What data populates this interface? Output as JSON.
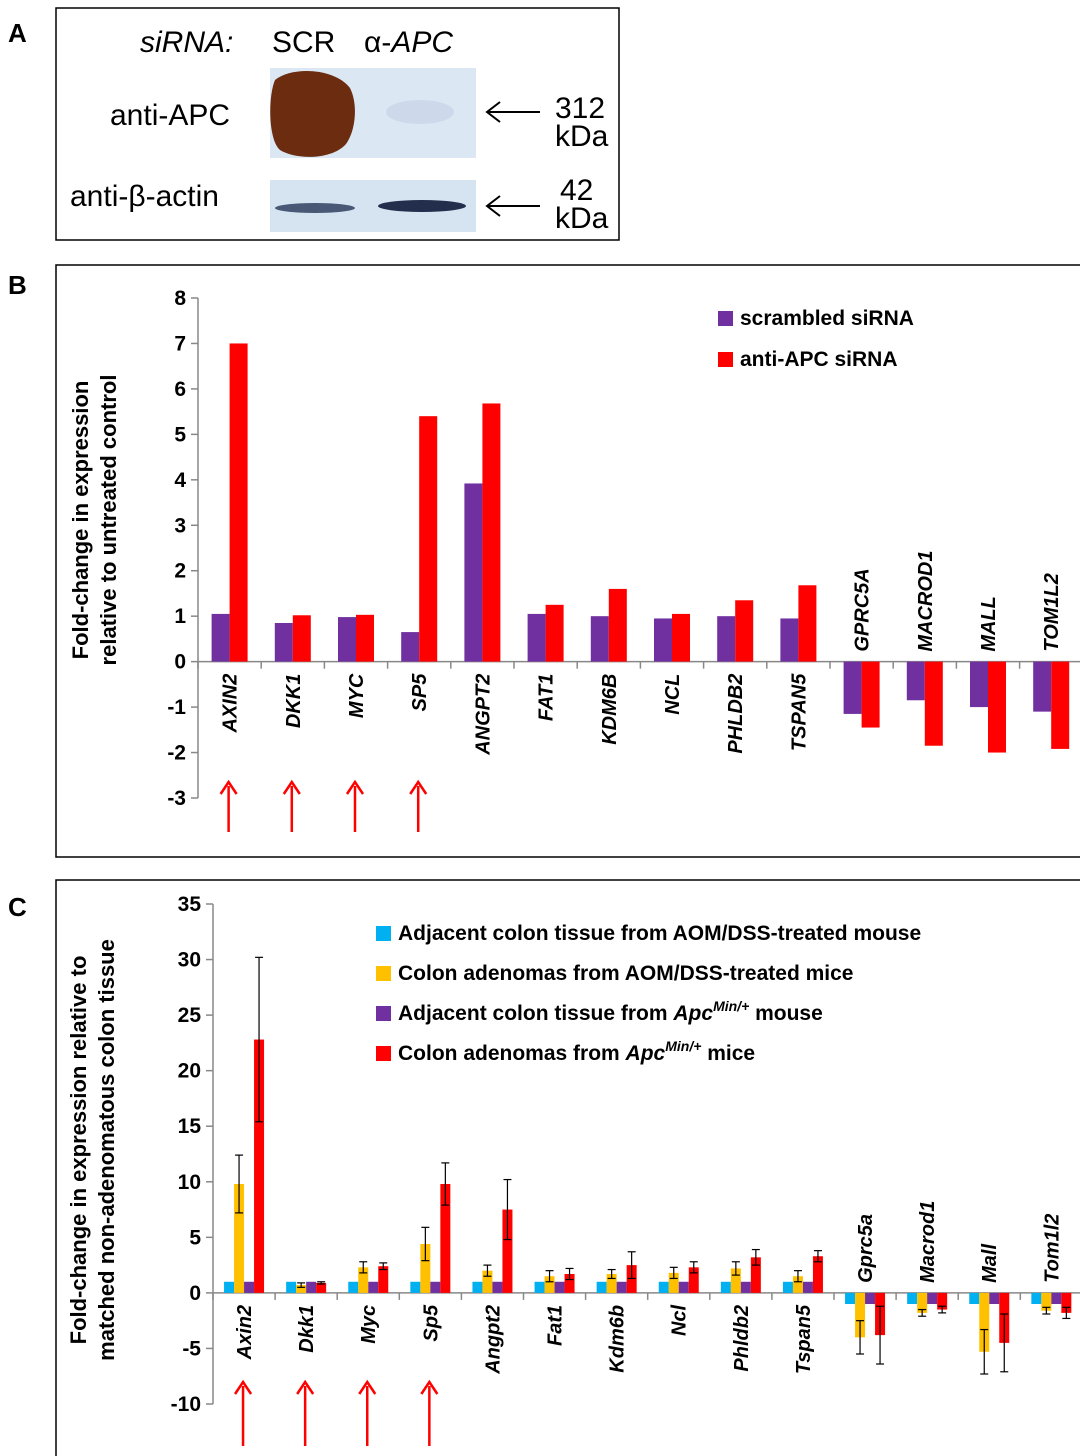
{
  "panel_a": {
    "letter": "A",
    "sirna_label": "siRNA:",
    "lanes": [
      "SCR",
      "α-APC"
    ],
    "rows": [
      {
        "label": "anti-APC",
        "size": "312",
        "unit": "kDa"
      },
      {
        "label": "anti-β-actin",
        "size": "42",
        "unit": "kDa"
      }
    ]
  },
  "chart_data": [
    {
      "panel": "B",
      "type": "bar",
      "ylabel": "Fold-change in expression relative to untreated control",
      "ylim": [
        -3,
        8
      ],
      "yticks": [
        -3,
        -2,
        -1,
        0,
        1,
        2,
        3,
        4,
        5,
        6,
        7,
        8
      ],
      "categories": [
        "AXIN2",
        "DKK1",
        "MYC",
        "SP5",
        "ANGPT2",
        "FAT1",
        "KDM6B",
        "NCL",
        "PHLDB2",
        "TSPAN5",
        "GPRC5A",
        "MACROD1",
        "MALL",
        "TOM1L2"
      ],
      "marked_categories": [
        "AXIN2",
        "DKK1",
        "MYC",
        "SP5"
      ],
      "series": [
        {
          "name": "scrambled siRNA",
          "color": "#7030a0",
          "values": [
            1.05,
            0.85,
            0.98,
            0.65,
            3.92,
            1.05,
            1.0,
            0.95,
            1.0,
            0.95,
            -1.15,
            -0.85,
            -1.0,
            -1.1
          ]
        },
        {
          "name": "anti-APC siRNA",
          "color": "#ff0000",
          "values": [
            7.0,
            1.02,
            1.03,
            5.4,
            5.68,
            1.25,
            1.6,
            1.05,
            1.35,
            1.68,
            -1.45,
            -1.85,
            -2.0,
            -1.92
          ]
        }
      ]
    },
    {
      "panel": "C",
      "type": "bar",
      "ylabel": "Fold-change in expression relative to matched non-adenomatous colon tissue",
      "ylim": [
        -10,
        35
      ],
      "yticks": [
        -10,
        -5,
        0,
        5,
        10,
        15,
        20,
        25,
        30,
        35
      ],
      "categories": [
        "Axin2",
        "Dkk1",
        "Myc",
        "Sp5",
        "Angpt2",
        "Fat1",
        "Kdm6b",
        "Ncl",
        "Phldb2",
        "Tspan5",
        "Gprc5a",
        "Macrod1",
        "Mall",
        "Tom1l2"
      ],
      "marked_categories": [
        "Axin2",
        "Dkk1",
        "Myc",
        "Sp5"
      ],
      "series": [
        {
          "name": "Adjacent colon tissue from AOM/DSS-treated mouse",
          "color": "#00b0f0",
          "values": [
            1,
            1,
            1,
            1,
            1,
            1,
            1,
            1,
            1,
            1,
            -1,
            -1,
            -1,
            -1
          ],
          "errors": [
            0,
            0,
            0,
            0,
            0,
            0,
            0,
            0,
            0,
            0,
            0,
            0,
            0,
            0
          ]
        },
        {
          "name": "Colon adenomas from AOM/DSS-treated mice",
          "color": "#ffc000",
          "values": [
            9.8,
            0.7,
            2.3,
            4.4,
            2.0,
            1.5,
            1.7,
            1.8,
            2.2,
            1.5,
            -4.0,
            -1.8,
            -5.3,
            -1.6
          ],
          "errors": [
            2.6,
            0.2,
            0.5,
            1.5,
            0.5,
            0.5,
            0.4,
            0.5,
            0.6,
            0.5,
            1.5,
            0.3,
            2.0,
            0.3
          ]
        },
        {
          "name": "Adjacent colon tissue from ApcMin/+ mouse",
          "name_parts": [
            "Adjacent colon tissue from ",
            "Apc",
            "Min/+",
            " mouse"
          ],
          "color": "#7030a0",
          "values": [
            1,
            1,
            1,
            1,
            1,
            1,
            1,
            1,
            1,
            1,
            -1,
            -1,
            -1,
            -1
          ],
          "errors": [
            0,
            0,
            0,
            0,
            0,
            0,
            0,
            0,
            0,
            0,
            0,
            0,
            0,
            0
          ]
        },
        {
          "name": "Colon adenomas from ApcMin/+ mice",
          "name_parts": [
            "Colon adenomas from ",
            "Apc",
            "Min/+",
            " mice"
          ],
          "color": "#ff0000",
          "values": [
            22.8,
            0.9,
            2.4,
            9.8,
            7.5,
            1.7,
            2.5,
            2.3,
            3.2,
            3.3,
            -3.8,
            -1.5,
            -4.5,
            -1.8
          ],
          "errors": [
            7.4,
            0.1,
            0.3,
            1.9,
            2.7,
            0.5,
            1.2,
            0.5,
            0.7,
            0.5,
            2.6,
            0.3,
            2.6,
            0.5
          ]
        }
      ]
    }
  ]
}
